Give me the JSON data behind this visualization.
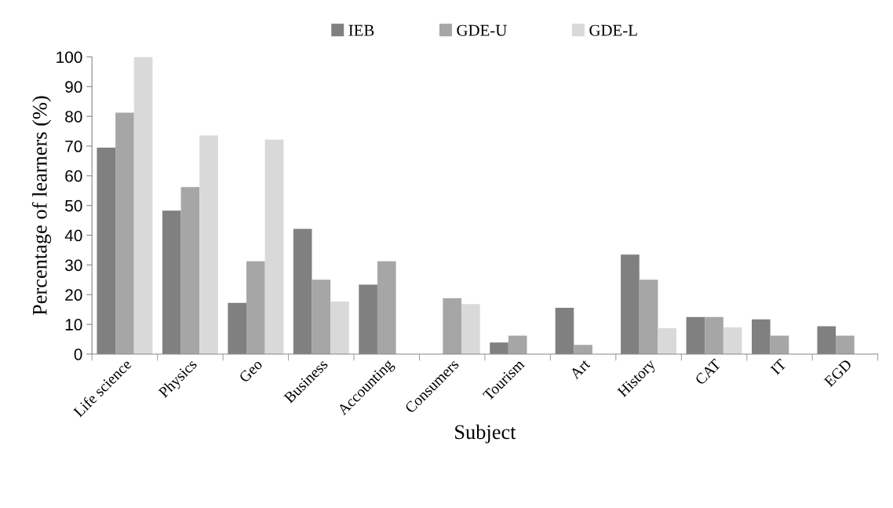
{
  "chart_data": {
    "type": "bar",
    "xlabel": "Subject",
    "ylabel": "Percentage of learners (%)",
    "categories": [
      "Life science",
      "Physics",
      "Geo",
      "Business",
      "Accounting",
      "Consumers",
      "Tourism",
      "Art",
      "History",
      "CAT",
      "IT",
      "EGD"
    ],
    "series": [
      {
        "name": "IEB",
        "color": "#808080",
        "values": [
          69.5,
          48.3,
          17.2,
          42.1,
          23.4,
          0,
          3.9,
          15.6,
          33.5,
          12.5,
          11.7,
          9.4
        ]
      },
      {
        "name": "GDE-U",
        "color": "#a6a6a6",
        "values": [
          81.2,
          56.2,
          31.2,
          25,
          31.2,
          18.8,
          6.2,
          3.1,
          25,
          12.5,
          6.2,
          6.2
        ]
      },
      {
        "name": "GDE-L",
        "color": "#d9d9d9",
        "values": [
          100,
          73.6,
          72.2,
          17.7,
          null,
          16.8,
          0,
          0,
          8.7,
          9,
          0,
          0
        ]
      }
    ],
    "ylim": [
      0,
      100
    ],
    "yticks": [
      0,
      10,
      20,
      30,
      40,
      50,
      60,
      70,
      80,
      90,
      100
    ],
    "grid": false,
    "legend": "top"
  }
}
